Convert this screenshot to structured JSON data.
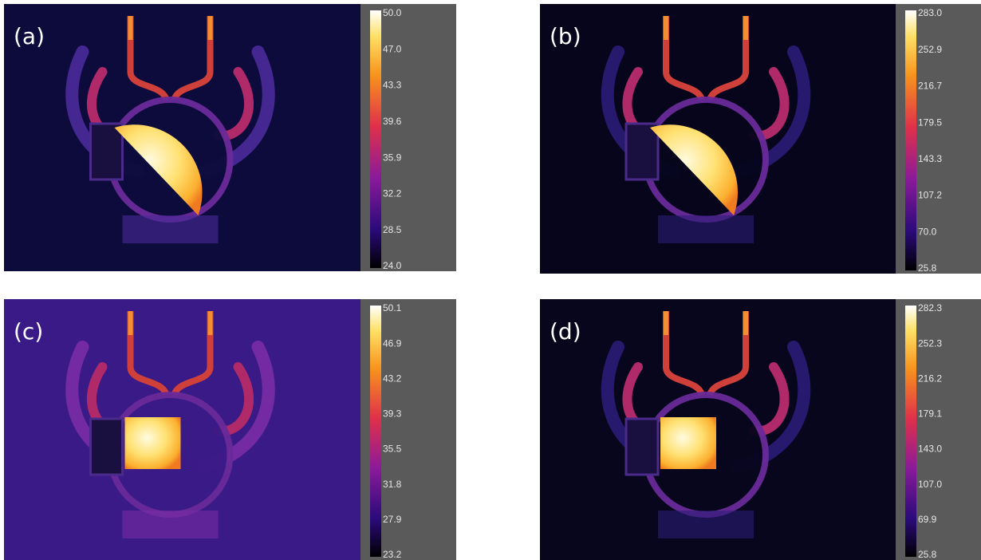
{
  "panels": [
    {
      "label": "(a)",
      "ticks": [
        "50.0",
        "47.0",
        "43.3",
        "39.6",
        "35.9",
        "32.2",
        "28.5",
        "24.0"
      ]
    },
    {
      "label": "(b)",
      "ticks": [
        "283.0",
        "252.9",
        "216.7",
        "179.5",
        "143.3",
        "107.2",
        "70.0",
        "25.8"
      ]
    },
    {
      "label": "(c)",
      "ticks": [
        "50.1",
        "46.9",
        "43.2",
        "39.3",
        "35.5",
        "31.8",
        "27.9",
        "23.2"
      ]
    },
    {
      "label": "(d)",
      "ticks": [
        "282.3",
        "252.3",
        "216.2",
        "179.1",
        "143.0",
        "107.0",
        "69.9",
        "25.8"
      ]
    }
  ]
}
